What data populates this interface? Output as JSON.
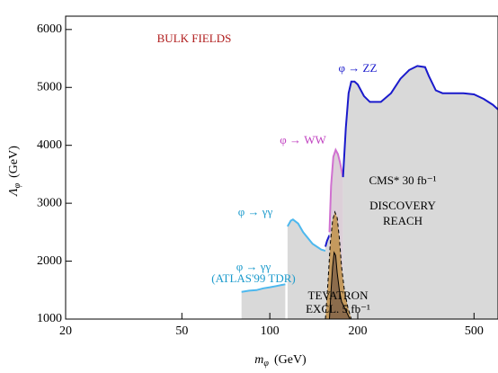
{
  "chart_data": {
    "type": "area",
    "annotations": [
      {
        "text": "BULK FIELDS",
        "color": "#b01c1c"
      },
      {
        "text": "φ → ZZ",
        "color": "#1a1acc"
      },
      {
        "text": "φ → WW",
        "color": "#c040c0"
      },
      {
        "text": "φ → γγ",
        "color": "#1a9acc"
      },
      {
        "text": "φ → γγ",
        "color": "#1a9acc"
      },
      {
        "text": "(ATLAS'99 TDR)",
        "color": "#1a9acc"
      },
      {
        "text": "CMS* 30 fb⁻¹",
        "color": "#000000"
      },
      {
        "text": "DISCOVERY",
        "color": "#000000"
      },
      {
        "text": "REACH",
        "color": "#000000"
      },
      {
        "text": "TEVATRON",
        "color": "#000000"
      },
      {
        "text": "EXCL. 5 fb⁻¹",
        "color": "#000000"
      }
    ],
    "x_label": {
      "symbol": "m",
      "subscript": "φ",
      "unit": "(GeV)"
    },
    "y_label": {
      "symbol": "Λ",
      "subscript": "φ",
      "unit": "(GeV)"
    },
    "x_log": true,
    "xlim": [
      20,
      604
    ],
    "ylim": [
      1000,
      6230
    ],
    "xticks": [
      20,
      50,
      100,
      200,
      500
    ],
    "yticks": [
      1000,
      2000,
      3000,
      4000,
      5000,
      6000
    ],
    "series": [
      {
        "color": "#4db8ee",
        "fill": "#d9d9d9",
        "dashed": false,
        "x": [
          80,
          85,
          90,
          95,
          100,
          105,
          110,
          113
        ],
        "values": [
          1470,
          1490,
          1500,
          1530,
          1550,
          1570,
          1590,
          1600
        ]
      },
      {
        "color": "#4db8ee",
        "fill": "#d9d9d9",
        "dashed": false,
        "x": [
          115,
          118,
          120,
          125,
          130,
          140,
          150,
          155
        ],
        "values": [
          2600,
          2700,
          2720,
          2650,
          2500,
          2300,
          2200,
          2180
        ]
      },
      {
        "color": "#1a1acc",
        "fill": "#d9d9d9",
        "dashed": false,
        "x": [
          155,
          157,
          160
        ],
        "values": [
          2250,
          2350,
          2450
        ]
      },
      {
        "color": "#d070d0",
        "fill": "#dccfd8",
        "dashed": false,
        "x": [
          160,
          162,
          165,
          168,
          171,
          174,
          178
        ],
        "values": [
          2500,
          3300,
          3800,
          3920,
          3850,
          3700,
          3450
        ]
      },
      {
        "color": "#1a1acc",
        "fill": "#d9d9d9",
        "dashed": false,
        "x": [
          178,
          182,
          186,
          190,
          195,
          200,
          210,
          220,
          240,
          260,
          280,
          300,
          320,
          340,
          350,
          370,
          390,
          420,
          460,
          500,
          540,
          580,
          604
        ],
        "values": [
          3450,
          4300,
          4900,
          5100,
          5100,
          5050,
          4850,
          4750,
          4750,
          4900,
          5150,
          5300,
          5370,
          5350,
          5200,
          4950,
          4900,
          4900,
          4900,
          4880,
          4800,
          4700,
          4620
        ]
      },
      {
        "color": "#000000",
        "fill": "#c49a5e",
        "dashed": true,
        "x": [
          155,
          158,
          161,
          164,
          167,
          170,
          173,
          176,
          180,
          185,
          190
        ],
        "values": [
          1000,
          1600,
          2300,
          2700,
          2850,
          2750,
          2400,
          1900,
          1500,
          1200,
          1000
        ]
      },
      {
        "color": "#000000",
        "fill": "#8c6c4c",
        "dashed": false,
        "x": [
          160,
          162,
          164,
          166,
          168,
          170,
          173,
          176,
          180,
          184,
          188
        ],
        "values": [
          1000,
          1500,
          1900,
          2150,
          2100,
          1800,
          1500,
          1300,
          1200,
          1100,
          1000
        ]
      }
    ]
  }
}
